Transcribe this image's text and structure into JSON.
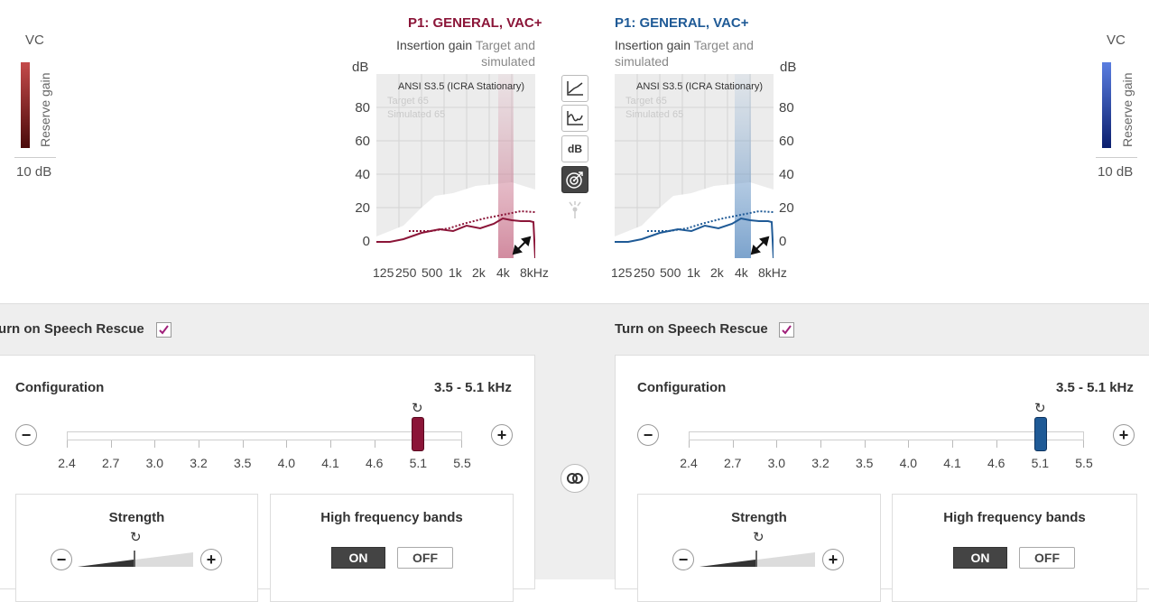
{
  "colors": {
    "left_accent": "#8b1538",
    "right_accent": "#1f5a96",
    "checkbox": "#a0207a"
  },
  "vc_left": {
    "title": "VC",
    "side_label": "Reserve gain",
    "value": "10 dB"
  },
  "vc_right": {
    "title": "VC",
    "side_label": "Reserve gain",
    "value": "10 dB"
  },
  "left_graph": {
    "program_title": "P1: GENERAL, VAC+",
    "subtitle_main": "Insertion gain",
    "subtitle_muted": "Target and simulated",
    "unit": "dB",
    "standard": "ANSI S3.5 (ICRA Stationary)",
    "legend_target": "Target 65",
    "legend_simulated": "Simulated 65",
    "y_ticks": [
      "80",
      "60",
      "40",
      "20",
      "0"
    ],
    "x_ticks": [
      "125",
      "250",
      "500",
      "1k",
      "2k",
      "4k",
      "8kHz"
    ]
  },
  "right_graph": {
    "program_title": "P1: GENERAL, VAC+",
    "subtitle_main": "Insertion gain",
    "subtitle_muted": "Target and simulated",
    "unit": "dB",
    "standard": "ANSI S3.5 (ICRA Stationary)",
    "legend_target": "Target 65",
    "legend_simulated": "Simulated 65",
    "y_ticks": [
      "80",
      "60",
      "40",
      "20",
      "0"
    ],
    "x_ticks": [
      "125",
      "250",
      "500",
      "1k",
      "2k",
      "4k",
      "8kHz"
    ]
  },
  "toolbar": {
    "db_label": "dB",
    "icons": [
      "curve-graph-icon",
      "frequency-response-icon",
      "db-button",
      "target-icon",
      "touch-gesture-icon"
    ]
  },
  "left_panel": {
    "speech_rescue_label": "Turn on Speech Rescue",
    "speech_rescue_checked": true,
    "config_label": "Configuration",
    "config_value": "3.5 - 5.1 kHz",
    "scale": [
      "2.4",
      "2.7",
      "3.0",
      "3.2",
      "3.5",
      "4.0",
      "4.1",
      "4.6",
      "5.1",
      "5.5"
    ],
    "selected": "5.1",
    "strength_label": "Strength",
    "strength_level": 0.4,
    "hf_bands_label": "High frequency bands",
    "on_label": "ON",
    "off_label": "OFF",
    "hf_state": "ON"
  },
  "right_panel": {
    "speech_rescue_label": "Turn on Speech Rescue",
    "speech_rescue_checked": true,
    "config_label": "Configuration",
    "config_value": "3.5 - 5.1 kHz",
    "scale": [
      "2.4",
      "2.7",
      "3.0",
      "3.2",
      "3.5",
      "4.0",
      "4.1",
      "4.6",
      "5.1",
      "5.5"
    ],
    "selected": "5.1",
    "strength_label": "Strength",
    "strength_level": 0.4,
    "hf_bands_label": "High frequency bands",
    "on_label": "ON",
    "off_label": "OFF",
    "hf_state": "ON"
  }
}
